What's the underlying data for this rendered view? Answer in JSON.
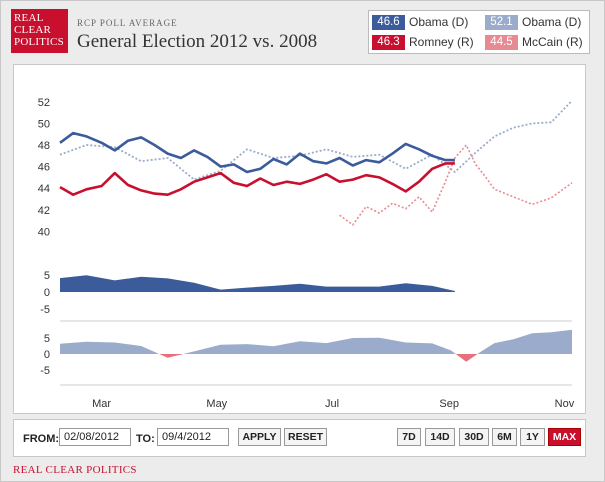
{
  "header": {
    "logo_lines": [
      "REAL",
      "CLEAR",
      "POLITICS"
    ],
    "supertitle": "RCP POLL AVERAGE",
    "title": "General Election 2012 vs. 2008"
  },
  "legend": [
    {
      "value": "46.6",
      "label": "Obama (D)",
      "color": "#3b5b9b"
    },
    {
      "value": "52.1",
      "label": "Obama (D)",
      "color": "#9aabcb"
    },
    {
      "value": "46.3",
      "label": "Romney (R)",
      "color": "#c8102e"
    },
    {
      "value": "44.5",
      "label": "McCain (R)",
      "color": "#e88a92"
    }
  ],
  "colors": {
    "obama_2012": "#3b5b9b",
    "romney_2012": "#c8102e",
    "obama_2008": "#9aabcb",
    "mccain_2008": "#e88a92",
    "spread_2012": "#3b5b9b",
    "spread_2008_pos": "#9aabcb",
    "spread_2008_neg": "#e8707c"
  },
  "chart_data": [
    {
      "type": "line",
      "x_labels": [
        "Mar",
        "May",
        "Jul",
        "Sep",
        "Nov"
      ],
      "x_label_dates": [
        "2012-03-01",
        "2012-05-01",
        "2012-07-01",
        "2012-09-01",
        "2012-11-01"
      ],
      "x_range": [
        "2012-02-08",
        "2012-11-05"
      ],
      "ylim": [
        38,
        53
      ],
      "yticks": [
        40,
        42,
        44,
        46,
        48,
        50,
        52
      ],
      "grid": false,
      "series": [
        {
          "name": "Obama (D)",
          "style": "solid",
          "x": [
            "2012-02-08",
            "2012-02-15",
            "2012-02-22",
            "2012-03-01",
            "2012-03-08",
            "2012-03-15",
            "2012-03-22",
            "2012-03-29",
            "2012-04-05",
            "2012-04-12",
            "2012-04-19",
            "2012-04-26",
            "2012-05-03",
            "2012-05-10",
            "2012-05-17",
            "2012-05-24",
            "2012-05-31",
            "2012-06-07",
            "2012-06-14",
            "2012-06-21",
            "2012-06-28",
            "2012-07-05",
            "2012-07-12",
            "2012-07-19",
            "2012-07-26",
            "2012-08-02",
            "2012-08-09",
            "2012-08-16",
            "2012-08-23",
            "2012-08-30",
            "2012-09-04"
          ],
          "values": [
            48.2,
            49.1,
            48.8,
            48.2,
            47.5,
            48.4,
            48.7,
            48.0,
            47.2,
            46.8,
            47.5,
            46.9,
            46.0,
            46.2,
            45.5,
            45.8,
            46.7,
            46.2,
            47.2,
            46.5,
            46.3,
            46.8,
            46.1,
            46.6,
            46.4,
            47.2,
            48.1,
            47.6,
            47.0,
            46.6,
            46.6
          ]
        },
        {
          "name": "Romney (R)",
          "style": "solid",
          "x": [
            "2012-02-08",
            "2012-02-15",
            "2012-02-22",
            "2012-03-01",
            "2012-03-08",
            "2012-03-15",
            "2012-03-22",
            "2012-03-29",
            "2012-04-05",
            "2012-04-12",
            "2012-04-19",
            "2012-04-26",
            "2012-05-03",
            "2012-05-10",
            "2012-05-17",
            "2012-05-24",
            "2012-05-31",
            "2012-06-07",
            "2012-06-14",
            "2012-06-21",
            "2012-06-28",
            "2012-07-05",
            "2012-07-12",
            "2012-07-19",
            "2012-07-26",
            "2012-08-02",
            "2012-08-09",
            "2012-08-16",
            "2012-08-23",
            "2012-08-30",
            "2012-09-04"
          ],
          "values": [
            44.1,
            43.4,
            43.9,
            44.2,
            45.4,
            44.3,
            43.8,
            43.5,
            43.4,
            43.9,
            44.6,
            45.0,
            45.4,
            44.5,
            44.2,
            44.9,
            44.3,
            44.6,
            44.4,
            44.8,
            45.3,
            44.6,
            44.8,
            45.2,
            45.0,
            44.4,
            43.7,
            44.6,
            45.8,
            46.3,
            46.3
          ]
        },
        {
          "name": "Obama (D)",
          "style": "dotted",
          "x": [
            "2012-02-08",
            "2012-02-22",
            "2012-03-08",
            "2012-03-22",
            "2012-04-05",
            "2012-04-19",
            "2012-05-03",
            "2012-05-17",
            "2012-05-31",
            "2012-06-14",
            "2012-06-28",
            "2012-07-12",
            "2012-07-26",
            "2012-08-09",
            "2012-08-23",
            "2012-09-04",
            "2012-09-15",
            "2012-09-25",
            "2012-10-05",
            "2012-10-15",
            "2012-10-25",
            "2012-11-05"
          ],
          "values": [
            47.1,
            48.0,
            47.8,
            46.5,
            46.8,
            44.8,
            45.6,
            47.6,
            46.8,
            47.0,
            47.6,
            46.9,
            47.1,
            45.8,
            47.1,
            45.5,
            47.3,
            48.8,
            49.6,
            50.0,
            50.1,
            52.1
          ]
        },
        {
          "name": "McCain (R)",
          "style": "dotted",
          "x": [
            "2012-07-05",
            "2012-07-12",
            "2012-07-19",
            "2012-07-26",
            "2012-08-02",
            "2012-08-09",
            "2012-08-16",
            "2012-08-23",
            "2012-08-30",
            "2012-09-04",
            "2012-09-10",
            "2012-09-15",
            "2012-09-20",
            "2012-09-25",
            "2012-10-05",
            "2012-10-15",
            "2012-10-25",
            "2012-11-05"
          ],
          "values": [
            41.5,
            40.6,
            42.3,
            41.7,
            42.6,
            42.1,
            43.2,
            41.8,
            44.6,
            46.8,
            48.0,
            46.2,
            45.1,
            43.9,
            43.2,
            42.5,
            43.1,
            44.5
          ]
        }
      ]
    },
    {
      "type": "area",
      "name": "spread 2012",
      "yticks": [
        -5,
        0,
        5
      ],
      "x": [
        "2012-02-08",
        "2012-02-22",
        "2012-03-08",
        "2012-03-22",
        "2012-04-05",
        "2012-04-19",
        "2012-05-03",
        "2012-05-17",
        "2012-05-31",
        "2012-06-14",
        "2012-06-28",
        "2012-07-12",
        "2012-07-26",
        "2012-08-09",
        "2012-08-23",
        "2012-09-04"
      ],
      "values": [
        4.1,
        4.9,
        3.4,
        4.5,
        4.0,
        2.7,
        0.7,
        1.3,
        1.8,
        2.4,
        1.6,
        1.6,
        1.6,
        2.6,
        1.8,
        0.3
      ]
    },
    {
      "type": "area",
      "name": "spread 2008",
      "yticks": [
        -5,
        0,
        5
      ],
      "x": [
        "2012-02-08",
        "2012-02-22",
        "2012-03-08",
        "2012-03-22",
        "2012-04-05",
        "2012-04-19",
        "2012-05-03",
        "2012-05-17",
        "2012-05-31",
        "2012-06-14",
        "2012-06-28",
        "2012-07-12",
        "2012-07-26",
        "2012-08-09",
        "2012-08-23",
        "2012-09-02",
        "2012-09-10",
        "2012-09-18",
        "2012-09-25",
        "2012-10-05",
        "2012-10-15",
        "2012-10-25",
        "2012-11-05"
      ],
      "values": [
        3.2,
        3.8,
        3.6,
        2.5,
        -1.2,
        0.8,
        2.9,
        3.1,
        2.4,
        4.0,
        3.4,
        5.0,
        5.1,
        3.6,
        3.3,
        1.1,
        -2.4,
        0.8,
        3.4,
        4.6,
        6.5,
        6.8,
        7.6
      ]
    }
  ],
  "controls": {
    "from_label": "FROM:",
    "from_value": "02/08/2012",
    "to_label": "TO:",
    "to_value": "09/4/2012",
    "apply": "APPLY",
    "reset": "RESET",
    "ranges": [
      "7D",
      "14D",
      "30D",
      "6M",
      "1Y",
      "MAX"
    ],
    "active_range": "MAX"
  },
  "footer": "REAL CLEAR POLITICS"
}
